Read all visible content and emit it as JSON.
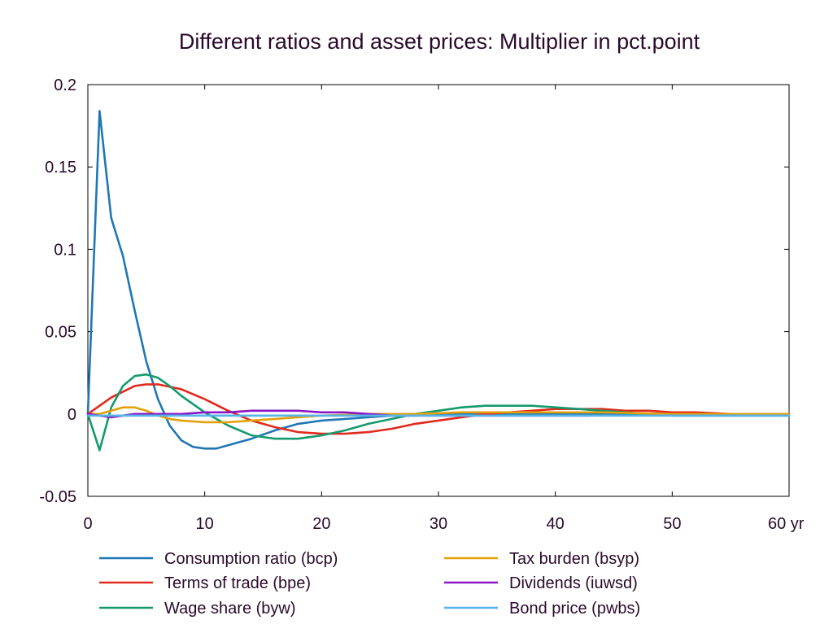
{
  "chart_data": {
    "type": "line",
    "title": "Different ratios and asset prices: Multiplier in pct.point",
    "xlabel": "",
    "ylabel": "",
    "xlim": [
      0,
      60
    ],
    "ylim": [
      -0.05,
      0.2
    ],
    "x_ticks": [
      0,
      10,
      20,
      30,
      40,
      50,
      60
    ],
    "x_tick_labels": [
      "0",
      "10",
      "20",
      "30",
      "40",
      "50",
      "60 yr"
    ],
    "y_ticks": [
      -0.05,
      0,
      0.05,
      0.1,
      0.15,
      0.2
    ],
    "y_tick_labels": [
      "-0.05",
      "0",
      "0.05",
      "0.1",
      "0.15",
      "0.2"
    ],
    "grid": false,
    "legend_position": "bottom",
    "series": [
      {
        "name": "Consumption ratio (bcp)",
        "color": "#1f77b4",
        "x": [
          0,
          1,
          2,
          3,
          4,
          5,
          6,
          7,
          8,
          9,
          10,
          11,
          12,
          14,
          16,
          18,
          20,
          22,
          24,
          26,
          28,
          30,
          34,
          38,
          42,
          46,
          50,
          55,
          60
        ],
        "y": [
          0,
          0.184,
          0.119,
          0.096,
          0.063,
          0.032,
          0.009,
          -0.007,
          -0.016,
          -0.02,
          -0.021,
          -0.021,
          -0.019,
          -0.015,
          -0.01,
          -0.006,
          -0.004,
          -0.003,
          -0.002,
          -0.001,
          -0.001,
          0,
          0,
          0,
          0,
          0,
          0,
          0,
          0
        ]
      },
      {
        "name": "Terms of trade (bpe)",
        "color": "#e02a1e",
        "x": [
          0,
          2,
          4,
          5,
          6,
          8,
          10,
          12,
          14,
          16,
          18,
          20,
          22,
          24,
          26,
          28,
          30,
          32,
          34,
          36,
          38,
          40,
          42,
          44,
          46,
          48,
          50,
          52,
          55,
          60
        ],
        "y": [
          0,
          0.01,
          0.017,
          0.018,
          0.018,
          0.015,
          0.009,
          0.002,
          -0.004,
          -0.008,
          -0.011,
          -0.012,
          -0.012,
          -0.011,
          -0.009,
          -0.006,
          -0.004,
          -0.002,
          0,
          0.001,
          0.002,
          0.003,
          0.003,
          0.003,
          0.002,
          0.002,
          0.001,
          0.001,
          0,
          0
        ]
      },
      {
        "name": "Wage share (byw)",
        "color": "#159a6e",
        "x": [
          0,
          1,
          2,
          3,
          4,
          5,
          6,
          7,
          8,
          10,
          12,
          14,
          16,
          18,
          20,
          22,
          24,
          26,
          28,
          30,
          32,
          34,
          36,
          38,
          40,
          42,
          44,
          46,
          48,
          50,
          52,
          55,
          58,
          60
        ],
        "y": [
          0,
          -0.022,
          0.004,
          0.017,
          0.023,
          0.024,
          0.022,
          0.017,
          0.011,
          0.001,
          -0.007,
          -0.013,
          -0.015,
          -0.015,
          -0.013,
          -0.01,
          -0.006,
          -0.003,
          0,
          0.002,
          0.004,
          0.005,
          0.005,
          0.005,
          0.004,
          0.003,
          0.002,
          0.001,
          0,
          -0.001,
          -0.001,
          -0.001,
          -0.001,
          -0.001
        ]
      },
      {
        "name": "Tax burden (bsyp)",
        "color": "#e3a008",
        "x": [
          0,
          1,
          2,
          3,
          4,
          5,
          6,
          7,
          8,
          10,
          12,
          14,
          16,
          18,
          20,
          24,
          28,
          32,
          36,
          40,
          44,
          50,
          55,
          60
        ],
        "y": [
          0,
          0,
          0.002,
          0.004,
          0.004,
          0.002,
          -0.001,
          -0.003,
          -0.004,
          -0.005,
          -0.005,
          -0.004,
          -0.003,
          -0.002,
          -0.001,
          0,
          0,
          0.001,
          0.001,
          0.001,
          0.001,
          0,
          0,
          0
        ]
      },
      {
        "name": "Dividends (iuwsd)",
        "color": "#8a16c6",
        "x": [
          0,
          1,
          2,
          3,
          4,
          6,
          8,
          10,
          12,
          14,
          16,
          18,
          20,
          22,
          24,
          26,
          28,
          30,
          35,
          40,
          43
        ],
        "y": [
          0,
          -0.001,
          -0.002,
          -0.001,
          0,
          0,
          0,
          0.001,
          0.001,
          0.002,
          0.002,
          0.002,
          0.001,
          0.001,
          0,
          -0.001,
          -0.001,
          -0.001,
          -0.001,
          -0.001,
          -0.001
        ]
      },
      {
        "name": "Bond price (pwbs)",
        "color": "#56b4e9",
        "x": [
          0,
          10,
          20,
          30,
          40,
          50,
          60
        ],
        "y": [
          -0.001,
          -0.001,
          -0.001,
          -0.001,
          -0.001,
          -0.001,
          -0.001
        ]
      }
    ]
  }
}
